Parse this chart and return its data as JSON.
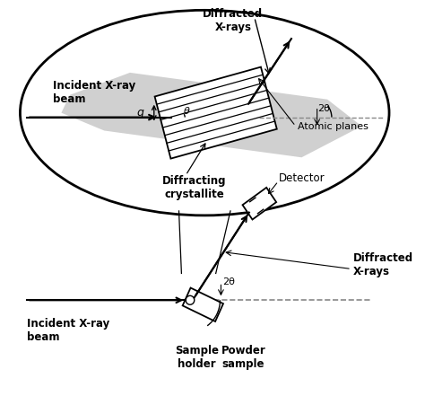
{
  "bg_color": "#ffffff",
  "colors": {
    "black": "#000000",
    "shadow_gray": "#d0d0d0",
    "dashed_color": "#888888",
    "white": "#ffffff"
  },
  "labels": {
    "incident_top": "Incident X-ray\nbeam",
    "diffracted_top": "Diffracted\nX-rays",
    "atomic_planes": "Atomic planes",
    "diffracting": "Diffracting\ncrystallite",
    "theta_top": "θ",
    "two_theta_top": "2θ",
    "q_label": "q",
    "incident_bottom": "Incident X-ray\nbeam",
    "sample_holder": "Sample\nholder",
    "powder_sample": "Powder\nsample",
    "detector": "Detector",
    "diffracted_bottom": "Diffracted\nX-rays",
    "two_theta_bottom": "2θ"
  }
}
